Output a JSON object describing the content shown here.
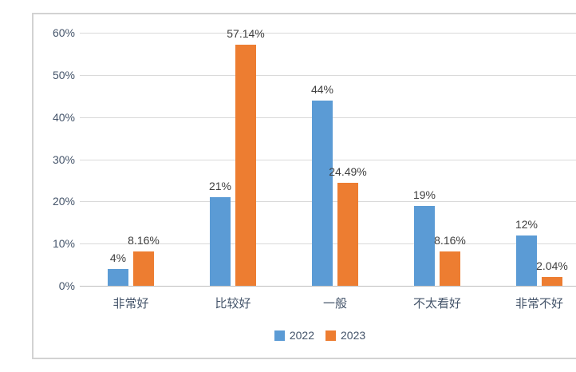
{
  "chart_data": {
    "type": "bar",
    "title": "",
    "categories": [
      "非常好",
      "比较好",
      "一般",
      "不太看好",
      "非常不好"
    ],
    "series": [
      {
        "name": "2022",
        "color": "#5B9BD5",
        "values": [
          4,
          21,
          44,
          19,
          12
        ],
        "labels": [
          "4%",
          "21%",
          "44%",
          "19%",
          "12%"
        ]
      },
      {
        "name": "2023",
        "color": "#ED7D31",
        "values": [
          8.16,
          57.14,
          24.49,
          8.16,
          2.04
        ],
        "labels": [
          "8.16%",
          "57.14%",
          "24.49%",
          "8.16%",
          "2.04%"
        ]
      }
    ],
    "y_axis": {
      "min": 0,
      "max": 60,
      "step": 10,
      "tick_labels": [
        "0%",
        "10%",
        "20%",
        "30%",
        "40%",
        "50%",
        "60%"
      ]
    },
    "grid": true,
    "legend_position": "bottom"
  },
  "colors": {
    "series_2022": "#5B9BD5",
    "series_2023": "#ED7D31",
    "gridline": "#D9D9D9",
    "axis_line": "#BFBFBF",
    "tick_text": "#44546A",
    "data_label_text": "#404040",
    "background": "#FFFFFF"
  }
}
